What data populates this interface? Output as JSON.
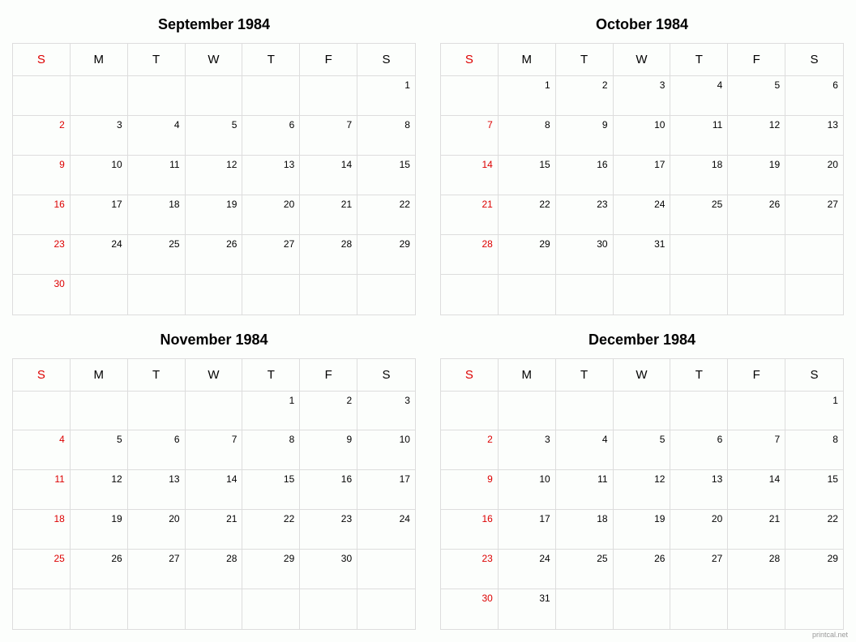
{
  "footer": "printcal.net",
  "day_headers": [
    "S",
    "M",
    "T",
    "W",
    "T",
    "F",
    "S"
  ],
  "styling": {
    "background_color": "#fcfefc",
    "border_color": "#dddddd",
    "text_color": "#000000",
    "sunday_color": "#dd0000",
    "footer_color": "#999999",
    "title_fontsize": 18,
    "header_fontsize": 15,
    "day_fontsize": 12,
    "footer_fontsize": 9,
    "grid_columns": 7,
    "grid_rows": 6,
    "header_row_height": 40,
    "layout": "2x2"
  },
  "months": [
    {
      "title": "September 1984",
      "weeks": [
        [
          "",
          "",
          "",
          "",
          "",
          "",
          "1"
        ],
        [
          "2",
          "3",
          "4",
          "5",
          "6",
          "7",
          "8"
        ],
        [
          "9",
          "10",
          "11",
          "12",
          "13",
          "14",
          "15"
        ],
        [
          "16",
          "17",
          "18",
          "19",
          "20",
          "21",
          "22"
        ],
        [
          "23",
          "24",
          "25",
          "26",
          "27",
          "28",
          "29"
        ],
        [
          "30",
          "",
          "",
          "",
          "",
          "",
          ""
        ]
      ]
    },
    {
      "title": "October 1984",
      "weeks": [
        [
          "",
          "1",
          "2",
          "3",
          "4",
          "5",
          "6"
        ],
        [
          "7",
          "8",
          "9",
          "10",
          "11",
          "12",
          "13"
        ],
        [
          "14",
          "15",
          "16",
          "17",
          "18",
          "19",
          "20"
        ],
        [
          "21",
          "22",
          "23",
          "24",
          "25",
          "26",
          "27"
        ],
        [
          "28",
          "29",
          "30",
          "31",
          "",
          "",
          ""
        ],
        [
          "",
          "",
          "",
          "",
          "",
          "",
          ""
        ]
      ]
    },
    {
      "title": "November 1984",
      "weeks": [
        [
          "",
          "",
          "",
          "",
          "1",
          "2",
          "3"
        ],
        [
          "4",
          "5",
          "6",
          "7",
          "8",
          "9",
          "10"
        ],
        [
          "11",
          "12",
          "13",
          "14",
          "15",
          "16",
          "17"
        ],
        [
          "18",
          "19",
          "20",
          "21",
          "22",
          "23",
          "24"
        ],
        [
          "25",
          "26",
          "27",
          "28",
          "29",
          "30",
          ""
        ],
        [
          "",
          "",
          "",
          "",
          "",
          "",
          ""
        ]
      ]
    },
    {
      "title": "December 1984",
      "weeks": [
        [
          "",
          "",
          "",
          "",
          "",
          "",
          "1"
        ],
        [
          "2",
          "3",
          "4",
          "5",
          "6",
          "7",
          "8"
        ],
        [
          "9",
          "10",
          "11",
          "12",
          "13",
          "14",
          "15"
        ],
        [
          "16",
          "17",
          "18",
          "19",
          "20",
          "21",
          "22"
        ],
        [
          "23",
          "24",
          "25",
          "26",
          "27",
          "28",
          "29"
        ],
        [
          "30",
          "31",
          "",
          "",
          "",
          "",
          ""
        ]
      ]
    }
  ]
}
